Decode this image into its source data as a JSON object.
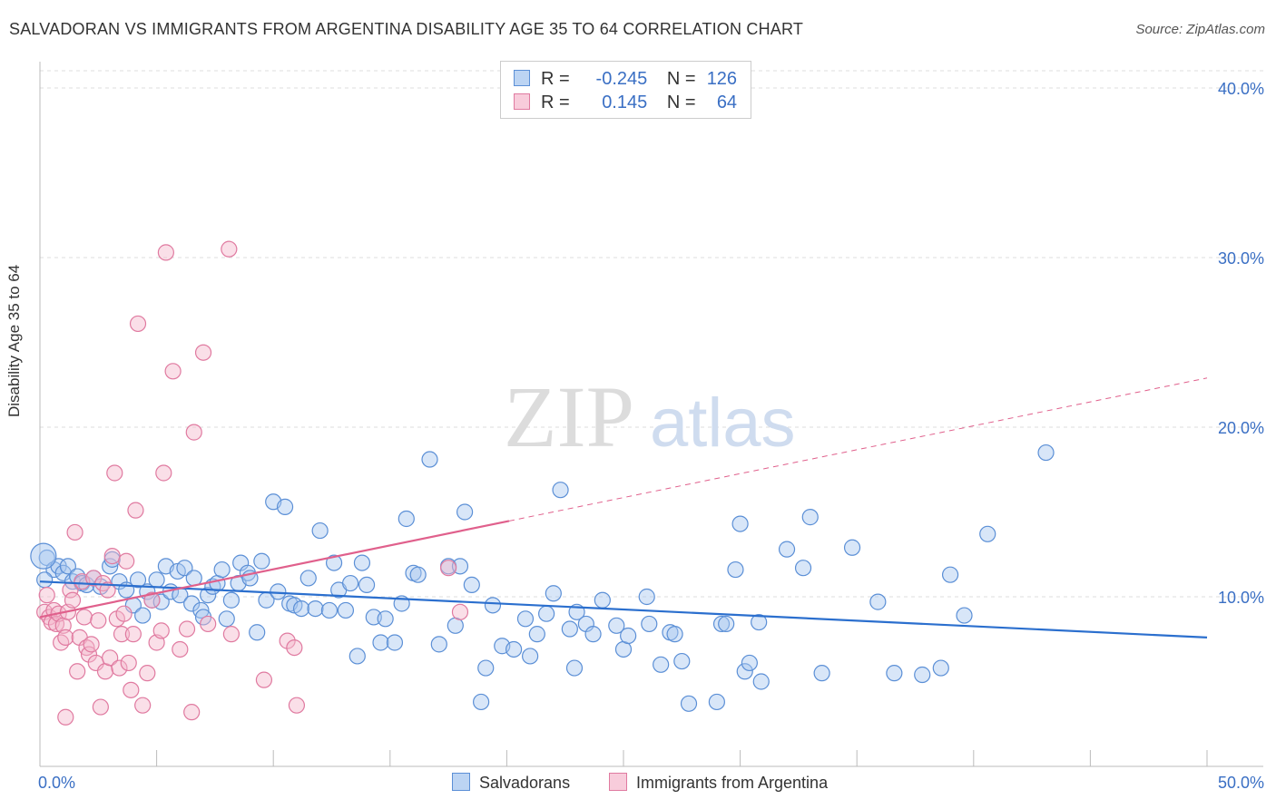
{
  "header": {
    "title": "SALVADORAN VS IMMIGRANTS FROM ARGENTINA DISABILITY AGE 35 TO 64 CORRELATION CHART",
    "source": "Source: ZipAtlas.com"
  },
  "watermark": {
    "zip": "ZIP",
    "atlas": "atlas"
  },
  "legend": {
    "salvadorans": {
      "r_label": "R =",
      "r_value": "-0.245",
      "n_label": "N =",
      "n_value": "126"
    },
    "argentina": {
      "r_label": "R =",
      "r_value": "0.145",
      "n_label": "N =",
      "n_value": "64"
    }
  },
  "colors": {
    "blue_fill": "#a8c8f0",
    "blue_stroke": "#5b8fd6",
    "blue_line": "#2b6fce",
    "pink_fill": "#f5b8cc",
    "pink_stroke": "#e07aa0",
    "pink_line": "#e0608c",
    "tick_text": "#3a6fc4",
    "grid": "#dddddd"
  },
  "chart_data": {
    "type": "scatter",
    "title": "SALVADORAN VS IMMIGRANTS FROM ARGENTINA DISABILITY AGE 35 TO 64 CORRELATION CHART",
    "ylabel": "Disability Age 35 to 64",
    "xlim": [
      0,
      50
    ],
    "ylim": [
      0,
      40
    ],
    "x_tick_labels": [
      "0.0%",
      "50.0%"
    ],
    "y_ticks": [
      10,
      20,
      30,
      40
    ],
    "y_tick_labels": [
      "10.0%",
      "20.0%",
      "30.0%",
      "40.0%"
    ],
    "grid": true,
    "legend_position": "top-center",
    "series": [
      {
        "name": "Salvadorans",
        "color": "#5b8fd6",
        "trend": {
          "x": [
            0,
            50
          ],
          "y": [
            10.9,
            7.6
          ],
          "solid_until": 50
        },
        "points": [
          [
            0.3,
            12.3
          ],
          [
            0.6,
            11.6
          ],
          [
            0.8,
            11.8
          ],
          [
            1.0,
            11.4
          ],
          [
            1.2,
            11.8
          ],
          [
            1.4,
            10.9
          ],
          [
            1.6,
            11.2
          ],
          [
            1.8,
            10.8
          ],
          [
            2.0,
            10.7
          ],
          [
            2.3,
            11.1
          ],
          [
            2.6,
            10.6
          ],
          [
            3.0,
            11.8
          ],
          [
            3.1,
            12.2
          ],
          [
            3.4,
            10.9
          ],
          [
            3.7,
            10.4
          ],
          [
            4.0,
            9.5
          ],
          [
            4.2,
            11.0
          ],
          [
            4.4,
            8.9
          ],
          [
            4.6,
            10.3
          ],
          [
            4.8,
            9.8
          ],
          [
            5.0,
            11.0
          ],
          [
            5.2,
            9.7
          ],
          [
            5.4,
            11.8
          ],
          [
            5.6,
            10.3
          ],
          [
            5.9,
            11.5
          ],
          [
            6.0,
            10.1
          ],
          [
            6.2,
            11.7
          ],
          [
            6.5,
            9.6
          ],
          [
            6.6,
            11.1
          ],
          [
            6.9,
            9.2
          ],
          [
            7.0,
            8.8
          ],
          [
            7.2,
            10.1
          ],
          [
            7.4,
            10.6
          ],
          [
            7.6,
            10.8
          ],
          [
            7.8,
            11.6
          ],
          [
            8.0,
            8.7
          ],
          [
            8.2,
            9.8
          ],
          [
            8.5,
            10.8
          ],
          [
            8.6,
            12.0
          ],
          [
            8.9,
            11.4
          ],
          [
            9.0,
            11.1
          ],
          [
            9.3,
            7.9
          ],
          [
            9.5,
            12.1
          ],
          [
            9.7,
            9.8
          ],
          [
            10.0,
            15.6
          ],
          [
            10.2,
            10.3
          ],
          [
            10.5,
            15.3
          ],
          [
            10.7,
            9.6
          ],
          [
            10.9,
            9.5
          ],
          [
            11.2,
            9.3
          ],
          [
            11.5,
            11.1
          ],
          [
            11.8,
            9.3
          ],
          [
            12.0,
            13.9
          ],
          [
            12.4,
            9.2
          ],
          [
            12.6,
            12.0
          ],
          [
            12.8,
            10.4
          ],
          [
            13.1,
            9.2
          ],
          [
            13.3,
            10.8
          ],
          [
            13.6,
            6.5
          ],
          [
            13.8,
            12.0
          ],
          [
            14.0,
            10.7
          ],
          [
            14.3,
            8.8
          ],
          [
            14.6,
            7.3
          ],
          [
            14.8,
            8.7
          ],
          [
            15.2,
            7.3
          ],
          [
            15.5,
            9.6
          ],
          [
            15.7,
            14.6
          ],
          [
            16.0,
            11.4
          ],
          [
            16.2,
            11.3
          ],
          [
            16.7,
            18.1
          ],
          [
            17.1,
            7.2
          ],
          [
            17.5,
            11.8
          ],
          [
            17.8,
            8.3
          ],
          [
            18.0,
            11.8
          ],
          [
            18.2,
            15.0
          ],
          [
            18.5,
            10.7
          ],
          [
            18.9,
            3.8
          ],
          [
            19.1,
            5.8
          ],
          [
            19.4,
            9.5
          ],
          [
            19.8,
            7.1
          ],
          [
            20.3,
            6.9
          ],
          [
            20.8,
            8.7
          ],
          [
            21.0,
            6.5
          ],
          [
            21.3,
            7.8
          ],
          [
            21.7,
            9.0
          ],
          [
            22.0,
            10.2
          ],
          [
            22.3,
            16.3
          ],
          [
            22.7,
            8.1
          ],
          [
            22.9,
            5.8
          ],
          [
            23.0,
            9.1
          ],
          [
            23.4,
            8.4
          ],
          [
            23.7,
            7.8
          ],
          [
            24.1,
            9.8
          ],
          [
            24.7,
            8.3
          ],
          [
            25.0,
            6.9
          ],
          [
            25.2,
            7.7
          ],
          [
            26.0,
            10.0
          ],
          [
            26.1,
            8.4
          ],
          [
            26.6,
            6.0
          ],
          [
            27.0,
            7.9
          ],
          [
            27.2,
            7.8
          ],
          [
            27.5,
            6.2
          ],
          [
            27.8,
            3.7
          ],
          [
            29.0,
            3.8
          ],
          [
            29.2,
            8.4
          ],
          [
            29.4,
            8.4
          ],
          [
            29.8,
            11.6
          ],
          [
            30.0,
            14.3
          ],
          [
            30.2,
            5.6
          ],
          [
            30.4,
            6.1
          ],
          [
            30.8,
            8.5
          ],
          [
            30.9,
            5.0
          ],
          [
            32.0,
            12.8
          ],
          [
            32.7,
            11.7
          ],
          [
            33.0,
            14.7
          ],
          [
            33.5,
            5.5
          ],
          [
            34.8,
            12.9
          ],
          [
            35.9,
            9.7
          ],
          [
            36.6,
            5.5
          ],
          [
            37.8,
            5.4
          ],
          [
            38.6,
            5.8
          ],
          [
            39.0,
            11.3
          ],
          [
            39.6,
            8.9
          ],
          [
            40.6,
            13.7
          ],
          [
            43.1,
            18.5
          ],
          [
            0.2,
            11.0
          ]
        ]
      },
      {
        "name": "Immigrants from Argentina",
        "color": "#e07aa0",
        "trend": {
          "x": [
            0,
            50
          ],
          "y": [
            8.8,
            22.9
          ],
          "solid_until": 20.1
        },
        "points": [
          [
            0.2,
            9.1
          ],
          [
            0.3,
            10.1
          ],
          [
            0.4,
            8.8
          ],
          [
            0.5,
            8.5
          ],
          [
            0.6,
            9.2
          ],
          [
            0.7,
            8.4
          ],
          [
            0.8,
            9.0
          ],
          [
            0.9,
            7.3
          ],
          [
            1.0,
            8.3
          ],
          [
            1.1,
            7.6
          ],
          [
            1.2,
            9.1
          ],
          [
            1.3,
            10.4
          ],
          [
            1.4,
            9.8
          ],
          [
            1.5,
            13.8
          ],
          [
            1.6,
            5.6
          ],
          [
            1.7,
            7.6
          ],
          [
            1.8,
            10.9
          ],
          [
            1.9,
            8.8
          ],
          [
            2.0,
            7.0
          ],
          [
            2.1,
            6.6
          ],
          [
            2.2,
            7.2
          ],
          [
            2.3,
            11.1
          ],
          [
            2.4,
            6.1
          ],
          [
            2.5,
            8.6
          ],
          [
            2.6,
            3.5
          ],
          [
            2.7,
            10.8
          ],
          [
            2.8,
            5.6
          ],
          [
            2.9,
            10.4
          ],
          [
            3.0,
            6.4
          ],
          [
            3.1,
            12.4
          ],
          [
            3.2,
            17.3
          ],
          [
            3.3,
            8.7
          ],
          [
            3.4,
            5.8
          ],
          [
            3.5,
            7.8
          ],
          [
            3.6,
            9.0
          ],
          [
            3.7,
            12.1
          ],
          [
            3.8,
            6.1
          ],
          [
            3.9,
            4.5
          ],
          [
            4.0,
            7.8
          ],
          [
            4.1,
            15.1
          ],
          [
            4.2,
            26.1
          ],
          [
            4.4,
            3.6
          ],
          [
            4.6,
            5.5
          ],
          [
            4.8,
            9.8
          ],
          [
            5.0,
            7.3
          ],
          [
            5.2,
            8.0
          ],
          [
            5.3,
            17.3
          ],
          [
            5.4,
            30.3
          ],
          [
            5.7,
            23.3
          ],
          [
            6.0,
            6.9
          ],
          [
            6.3,
            8.1
          ],
          [
            6.5,
            3.2
          ],
          [
            6.6,
            19.7
          ],
          [
            7.0,
            24.4
          ],
          [
            7.2,
            8.4
          ],
          [
            8.2,
            7.8
          ],
          [
            8.1,
            30.5
          ],
          [
            9.6,
            5.1
          ],
          [
            10.6,
            7.4
          ],
          [
            10.9,
            7.0
          ],
          [
            11.0,
            3.6
          ],
          [
            17.5,
            11.7
          ],
          [
            18.0,
            9.1
          ],
          [
            1.1,
            2.9
          ]
        ]
      }
    ]
  },
  "bottom_legend": {
    "salvadorans": "Salvadorans",
    "argentina": "Immigrants from Argentina"
  }
}
